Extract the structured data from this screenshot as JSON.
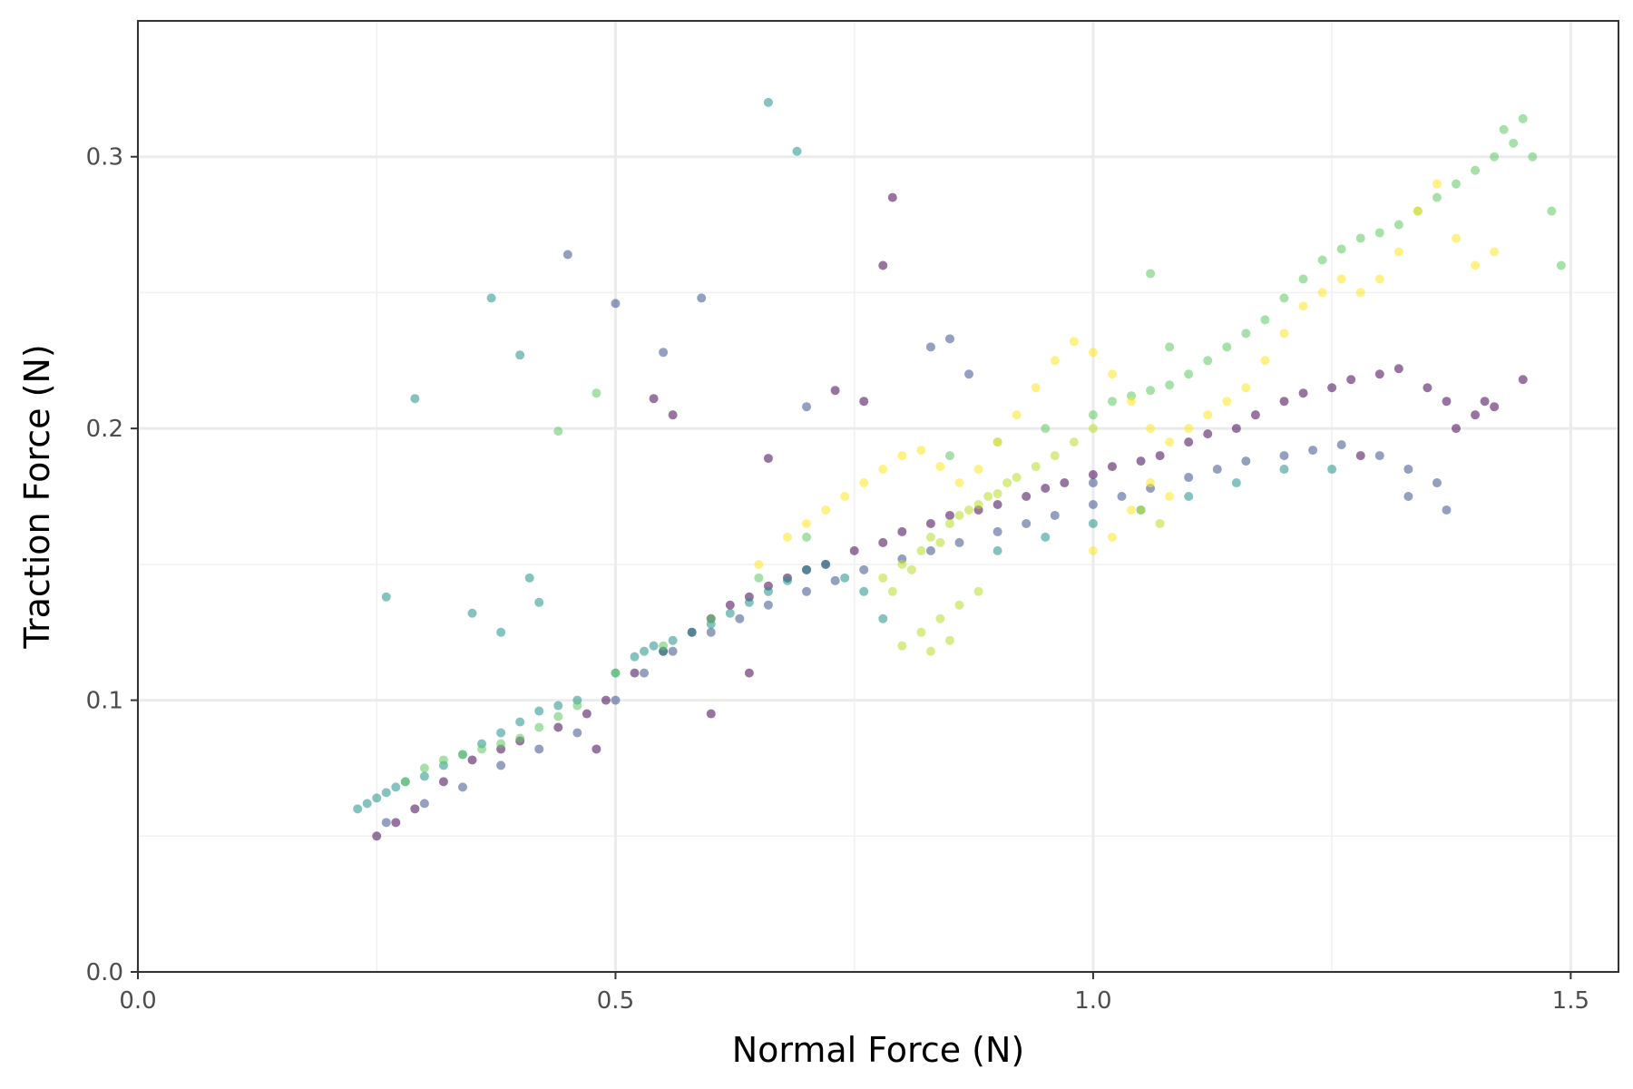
{
  "chart_data": {
    "type": "scatter",
    "title": "",
    "xlabel": "Normal Force (N)",
    "ylabel": "Traction Force (N)",
    "xlim": [
      0.0,
      1.55
    ],
    "ylim": [
      0.0,
      0.35
    ],
    "x_ticks": [
      0.0,
      0.5,
      1.0,
      1.5
    ],
    "x_tick_labels": [
      "0.0",
      "0.5",
      "1.0",
      "1.5"
    ],
    "y_ticks": [
      0.0,
      0.1,
      0.2,
      0.3
    ],
    "y_tick_labels": [
      "0.0",
      "0.1",
      "0.2",
      "0.3"
    ],
    "grid": true,
    "legend": "none",
    "point_opacity": 0.55,
    "palette": [
      "#440154",
      "#3b528b",
      "#21918c",
      "#5ec962",
      "#fde725"
    ],
    "series": [
      {
        "color": "#440154",
        "x": [
          0.25,
          0.27,
          0.29,
          0.32,
          0.35,
          0.38,
          0.4,
          0.44,
          0.47,
          0.49,
          0.52,
          0.55,
          0.58,
          0.6,
          0.62,
          0.64,
          0.66,
          0.68,
          0.7,
          0.72,
          0.75,
          0.78,
          0.8,
          0.83,
          0.85,
          0.88,
          0.9,
          0.93,
          0.95,
          0.97,
          1.0,
          1.02,
          1.05,
          1.07,
          1.1,
          1.12,
          1.15,
          1.17,
          1.2,
          1.22,
          1.25,
          1.27,
          1.3,
          1.32,
          1.35,
          1.37,
          1.4,
          1.42,
          1.45,
          0.48,
          0.54,
          0.56,
          0.66,
          0.73,
          0.78,
          0.79,
          0.76,
          0.6,
          0.64,
          1.28,
          1.38,
          1.41
        ],
        "y": [
          0.05,
          0.055,
          0.06,
          0.07,
          0.078,
          0.082,
          0.085,
          0.09,
          0.095,
          0.1,
          0.11,
          0.118,
          0.125,
          0.13,
          0.135,
          0.138,
          0.142,
          0.145,
          0.148,
          0.15,
          0.155,
          0.158,
          0.162,
          0.165,
          0.168,
          0.17,
          0.172,
          0.175,
          0.178,
          0.18,
          0.183,
          0.186,
          0.188,
          0.19,
          0.195,
          0.198,
          0.2,
          0.205,
          0.21,
          0.213,
          0.215,
          0.218,
          0.22,
          0.222,
          0.215,
          0.21,
          0.205,
          0.208,
          0.218,
          0.082,
          0.211,
          0.205,
          0.189,
          0.214,
          0.26,
          0.285,
          0.21,
          0.095,
          0.11,
          0.19,
          0.2,
          0.21
        ]
      },
      {
        "color": "#3b528b",
        "x": [
          0.26,
          0.3,
          0.34,
          0.38,
          0.42,
          0.46,
          0.5,
          0.53,
          0.56,
          0.6,
          0.63,
          0.66,
          0.7,
          0.73,
          0.76,
          0.8,
          0.83,
          0.86,
          0.9,
          0.93,
          0.96,
          1.0,
          1.03,
          1.06,
          1.1,
          1.13,
          1.16,
          1.2,
          1.23,
          1.26,
          1.3,
          1.33,
          1.36,
          0.45,
          0.5,
          0.55,
          0.59,
          0.7,
          0.83,
          0.85,
          0.87,
          1.0,
          1.33,
          1.37
        ],
        "y": [
          0.055,
          0.062,
          0.068,
          0.076,
          0.082,
          0.088,
          0.1,
          0.11,
          0.118,
          0.125,
          0.13,
          0.135,
          0.14,
          0.144,
          0.148,
          0.152,
          0.155,
          0.158,
          0.162,
          0.165,
          0.168,
          0.172,
          0.175,
          0.178,
          0.182,
          0.185,
          0.188,
          0.19,
          0.192,
          0.194,
          0.19,
          0.185,
          0.18,
          0.264,
          0.246,
          0.228,
          0.248,
          0.208,
          0.23,
          0.233,
          0.22,
          0.18,
          0.175,
          0.17
        ]
      },
      {
        "color": "#21918c",
        "x": [
          0.23,
          0.24,
          0.25,
          0.26,
          0.27,
          0.28,
          0.3,
          0.32,
          0.34,
          0.36,
          0.38,
          0.4,
          0.42,
          0.44,
          0.46,
          0.5,
          0.52,
          0.53,
          0.54,
          0.55,
          0.56,
          0.58,
          0.6,
          0.62,
          0.64,
          0.66,
          0.68,
          0.7,
          0.72,
          0.74,
          0.76,
          0.78,
          0.9,
          0.95,
          1.0,
          1.05,
          1.1,
          1.15,
          1.2,
          1.25,
          0.37,
          0.4,
          0.41,
          0.38,
          0.26,
          0.29,
          0.66,
          0.69,
          0.35,
          0.42
        ],
        "y": [
          0.06,
          0.062,
          0.064,
          0.066,
          0.068,
          0.07,
          0.072,
          0.076,
          0.08,
          0.084,
          0.088,
          0.092,
          0.096,
          0.098,
          0.1,
          0.11,
          0.116,
          0.118,
          0.12,
          0.118,
          0.122,
          0.125,
          0.128,
          0.132,
          0.136,
          0.14,
          0.144,
          0.148,
          0.15,
          0.145,
          0.14,
          0.13,
          0.155,
          0.16,
          0.165,
          0.17,
          0.175,
          0.18,
          0.185,
          0.185,
          0.248,
          0.227,
          0.145,
          0.125,
          0.138,
          0.211,
          0.32,
          0.302,
          0.132,
          0.136
        ]
      },
      {
        "color": "#5ec962",
        "x": [
          0.28,
          0.3,
          0.32,
          0.34,
          0.36,
          0.38,
          0.4,
          0.42,
          0.44,
          0.46,
          0.5,
          0.55,
          0.6,
          0.65,
          0.7,
          0.85,
          0.9,
          0.95,
          1.0,
          1.02,
          1.04,
          1.06,
          1.08,
          1.1,
          1.12,
          1.14,
          1.16,
          1.18,
          1.2,
          1.22,
          1.24,
          1.26,
          1.28,
          1.3,
          1.32,
          1.34,
          1.36,
          1.38,
          1.4,
          1.42,
          1.44,
          1.46,
          1.48,
          1.49,
          1.45,
          1.43,
          0.44,
          0.48,
          1.06,
          1.08
        ],
        "y": [
          0.07,
          0.075,
          0.078,
          0.08,
          0.082,
          0.084,
          0.086,
          0.09,
          0.094,
          0.098,
          0.11,
          0.12,
          0.13,
          0.145,
          0.16,
          0.19,
          0.195,
          0.2,
          0.205,
          0.21,
          0.212,
          0.214,
          0.216,
          0.22,
          0.225,
          0.23,
          0.235,
          0.24,
          0.248,
          0.255,
          0.262,
          0.266,
          0.27,
          0.272,
          0.275,
          0.28,
          0.285,
          0.29,
          0.295,
          0.3,
          0.305,
          0.3,
          0.28,
          0.26,
          0.314,
          0.31,
          0.199,
          0.213,
          0.257,
          0.23
        ]
      },
      {
        "color": "#b8de29",
        "x": [
          0.78,
          0.79,
          0.8,
          0.81,
          0.82,
          0.83,
          0.84,
          0.85,
          0.86,
          0.87,
          0.88,
          0.89,
          0.9,
          0.91,
          0.92,
          0.94,
          0.96,
          0.98,
          1.0,
          0.82,
          0.84,
          0.86,
          0.88,
          0.8,
          0.83,
          0.85,
          1.05,
          1.07
        ],
        "y": [
          0.145,
          0.14,
          0.15,
          0.148,
          0.155,
          0.16,
          0.158,
          0.165,
          0.168,
          0.17,
          0.172,
          0.175,
          0.176,
          0.18,
          0.182,
          0.186,
          0.19,
          0.195,
          0.2,
          0.125,
          0.13,
          0.135,
          0.14,
          0.12,
          0.118,
          0.122,
          0.17,
          0.165
        ]
      },
      {
        "color": "#fde725",
        "x": [
          0.65,
          0.68,
          0.7,
          0.72,
          0.74,
          0.76,
          0.78,
          0.8,
          0.82,
          0.84,
          0.86,
          0.88,
          0.9,
          0.92,
          0.94,
          0.96,
          0.98,
          1.0,
          1.02,
          1.04,
          1.06,
          1.08,
          1.1,
          1.12,
          1.14,
          1.16,
          1.18,
          1.2,
          1.22,
          1.24,
          1.26,
          1.28,
          1.3,
          1.32,
          1.34,
          1.36,
          1.38,
          1.4,
          1.42,
          1.0,
          1.02,
          1.04,
          1.06,
          1.08
        ],
        "y": [
          0.15,
          0.16,
          0.165,
          0.17,
          0.175,
          0.18,
          0.185,
          0.19,
          0.192,
          0.186,
          0.18,
          0.185,
          0.195,
          0.205,
          0.215,
          0.225,
          0.232,
          0.228,
          0.22,
          0.21,
          0.2,
          0.195,
          0.2,
          0.205,
          0.21,
          0.215,
          0.225,
          0.235,
          0.245,
          0.25,
          0.255,
          0.25,
          0.255,
          0.265,
          0.28,
          0.29,
          0.27,
          0.26,
          0.265,
          0.155,
          0.16,
          0.17,
          0.18,
          0.175
        ]
      }
    ]
  }
}
